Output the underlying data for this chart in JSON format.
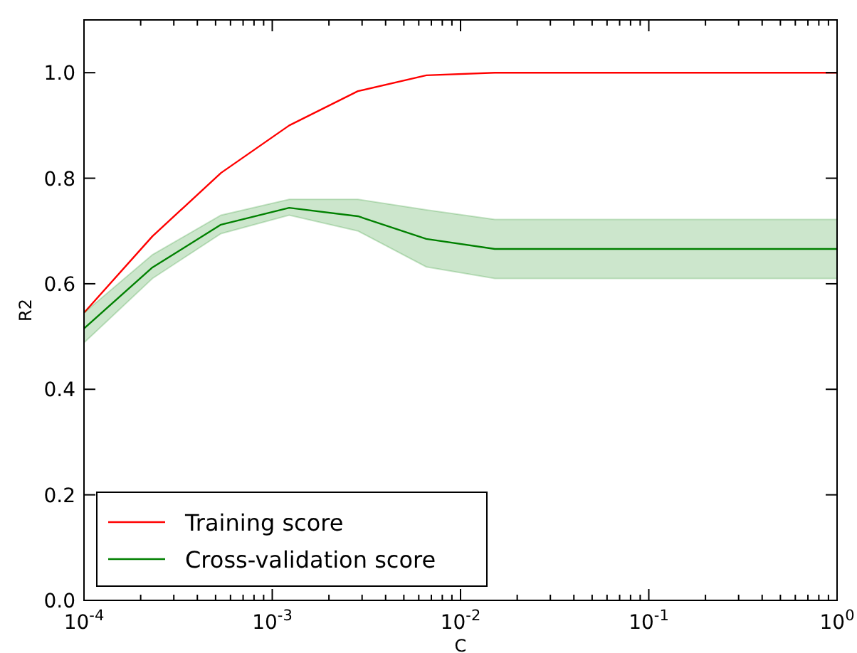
{
  "chart_data": {
    "type": "line",
    "xlabel": "C",
    "ylabel": "R2",
    "log": "x",
    "x": [
      0.0001,
      0.000231,
      0.000534,
      0.00123,
      0.00285,
      0.00658,
      0.0152,
      0.0351,
      0.0811,
      0.187,
      0.433,
      1
    ],
    "xlim": [
      0.0001,
      1
    ],
    "xticks": [
      {
        "value": 0.0001,
        "label": "10$^{-4}$"
      },
      {
        "value": 0.0002,
        "label": null
      },
      {
        "value": 0.0003,
        "label": null
      },
      {
        "value": 0.0004,
        "label": null
      },
      {
        "value": 0.0005,
        "label": null
      },
      {
        "value": 0.0006,
        "label": null
      },
      {
        "value": 0.0007,
        "label": null
      },
      {
        "value": 0.0008,
        "label": null
      },
      {
        "value": 0.0009,
        "label": null
      },
      {
        "value": 0.001,
        "label": "10$^{-3}$"
      },
      {
        "value": 0.002,
        "label": null
      },
      {
        "value": 0.003,
        "label": null
      },
      {
        "value": 0.004,
        "label": null
      },
      {
        "value": 0.005,
        "label": null
      },
      {
        "value": 0.006,
        "label": null
      },
      {
        "value": 0.007,
        "label": null
      },
      {
        "value": 0.008,
        "label": null
      },
      {
        "value": 0.009,
        "label": null
      },
      {
        "value": 0.01,
        "label": "10$^{-2}$"
      },
      {
        "value": 0.02,
        "label": null
      },
      {
        "value": 0.03,
        "label": null
      },
      {
        "value": 0.04,
        "label": null
      },
      {
        "value": 0.05,
        "label": null
      },
      {
        "value": 0.06,
        "label": null
      },
      {
        "value": 0.07,
        "label": null
      },
      {
        "value": 0.08,
        "label": null
      },
      {
        "value": 0.09,
        "label": null
      },
      {
        "value": 0.1,
        "label": "10$^{-1}$"
      },
      {
        "value": 0.2,
        "label": null
      },
      {
        "value": 0.3,
        "label": null
      },
      {
        "value": 0.4,
        "label": null
      },
      {
        "value": 0.5,
        "label": null
      },
      {
        "value": 0.6,
        "label": null
      },
      {
        "value": 0.7,
        "label": null
      },
      {
        "value": 0.8,
        "label": null
      },
      {
        "value": 0.9,
        "label": null
      },
      {
        "value": 1,
        "label": "10$^{0}$"
      }
    ],
    "ylim": [
      0,
      1.1
    ],
    "yticks": [
      {
        "value": 0,
        "label": "0.0"
      },
      {
        "value": 0.2,
        "label": "0.2"
      },
      {
        "value": 0.4,
        "label": "0.4"
      },
      {
        "value": 0.6,
        "label": "0.6"
      },
      {
        "value": 0.8,
        "label": "0.8"
      },
      {
        "value": 1,
        "label": "1.0"
      }
    ],
    "grid": false,
    "legend": "bottom left",
    "marker": "none",
    "line_style": "solid",
    "series": [
      {
        "name": "Training score",
        "color": "#ff0000",
        "values": [
          0.545,
          0.69,
          0.81,
          0.9,
          0.965,
          0.995,
          1,
          1,
          1,
          1,
          1,
          1
        ]
      },
      {
        "name": "Cross-validation score",
        "color": "#008000",
        "values": [
          0.515,
          0.631,
          0.712,
          0.744,
          0.728,
          0.685,
          0.666,
          0.666,
          0.666,
          0.666,
          0.666,
          0.666
        ],
        "lower": [
          0.488,
          0.61,
          0.695,
          0.73,
          0.7,
          0.632,
          0.61,
          0.61,
          0.61,
          0.61,
          0.61,
          0.61
        ],
        "upper": [
          0.545,
          0.655,
          0.73,
          0.76,
          0.76,
          0.74,
          0.722,
          0.722,
          0.722,
          0.722,
          0.722,
          0.722
        ]
      }
    ]
  }
}
